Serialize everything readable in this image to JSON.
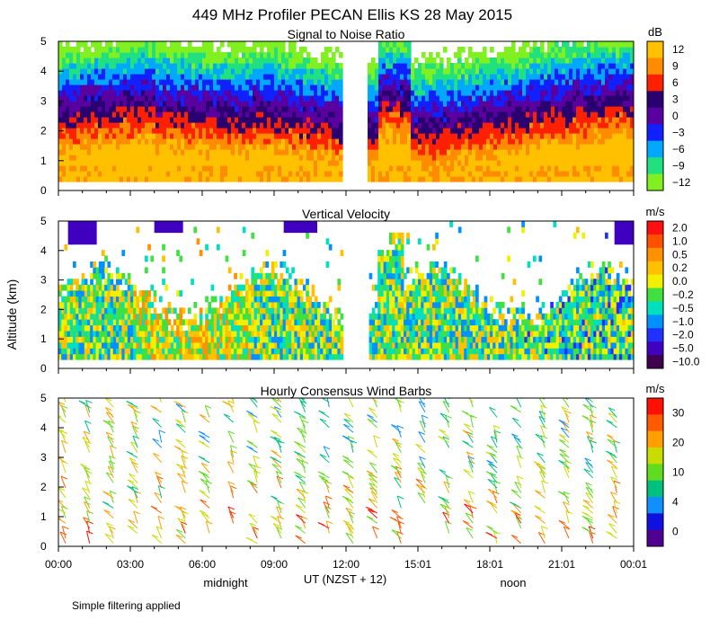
{
  "title": "449 MHz Profiler PECAN Ellis KS 28 May 2015",
  "ylabel": "Altitude (km)",
  "xlabel": "UT  (NZST + 12)",
  "footnote": "Simple filtering applied",
  "time_ticks": [
    "00:00",
    "03:00",
    "06:00",
    "09:00",
    "12:00",
    "15:01",
    "18:01",
    "21:01",
    "00:01"
  ],
  "local_markers": [
    "midnight",
    "noon"
  ],
  "chart_data": [
    {
      "type": "heatmap",
      "title": "Signal to Noise Ratio",
      "unit": "dB",
      "xlim": [
        0,
        24
      ],
      "ylim": [
        0,
        5
      ],
      "yticks": [
        0,
        1,
        2,
        3,
        4,
        5
      ],
      "colorbar_labels": [
        "12",
        "9",
        "6",
        "3",
        "0",
        "−3",
        "−6",
        "−9",
        "−12"
      ],
      "colorbar_colors": [
        "#ffc000",
        "#ff8c00",
        "#ff2000",
        "#2a0070",
        "#5a00a0",
        "#1020ff",
        "#00a8ff",
        "#20e080",
        "#80f020"
      ],
      "data_gap_hours": [
        11.8,
        12.9
      ]
    },
    {
      "type": "heatmap",
      "title": "Vertical Velocity",
      "unit": "m/s",
      "xlim": [
        0,
        24
      ],
      "ylim": [
        0,
        5
      ],
      "yticks": [
        0,
        1,
        2,
        3,
        4,
        5
      ],
      "colorbar_labels": [
        "2.0",
        "1.0",
        "0.5",
        "0.2",
        "0.0",
        "−0.2",
        "−0.5",
        "−1.0",
        "−2.0",
        "−5.0",
        "−10.0"
      ],
      "colorbar_colors": [
        "#ff1010",
        "#ff5000",
        "#ff9000",
        "#ffc000",
        "#f0f000",
        "#40e040",
        "#00e0c0",
        "#0090ff",
        "#2030ff",
        "#4000c0",
        "#400050"
      ],
      "data_gap_hours": [
        11.8,
        12.9
      ]
    },
    {
      "type": "wind_barbs",
      "title": "Hourly Consensus Wind Barbs",
      "unit": "m/s",
      "xlim": [
        0,
        24
      ],
      "ylim": [
        0,
        5
      ],
      "yticks": [
        0,
        1,
        2,
        3,
        4,
        5
      ],
      "colorbar_labels": [
        "30",
        "20",
        "10",
        "4",
        "0"
      ],
      "colorbar_colors": [
        "#ff1000",
        "#ff5a00",
        "#ffa000",
        "#c8dc00",
        "#60dc20",
        "#00c080",
        "#1090ff",
        "#1010e0",
        "#500090"
      ]
    }
  ]
}
